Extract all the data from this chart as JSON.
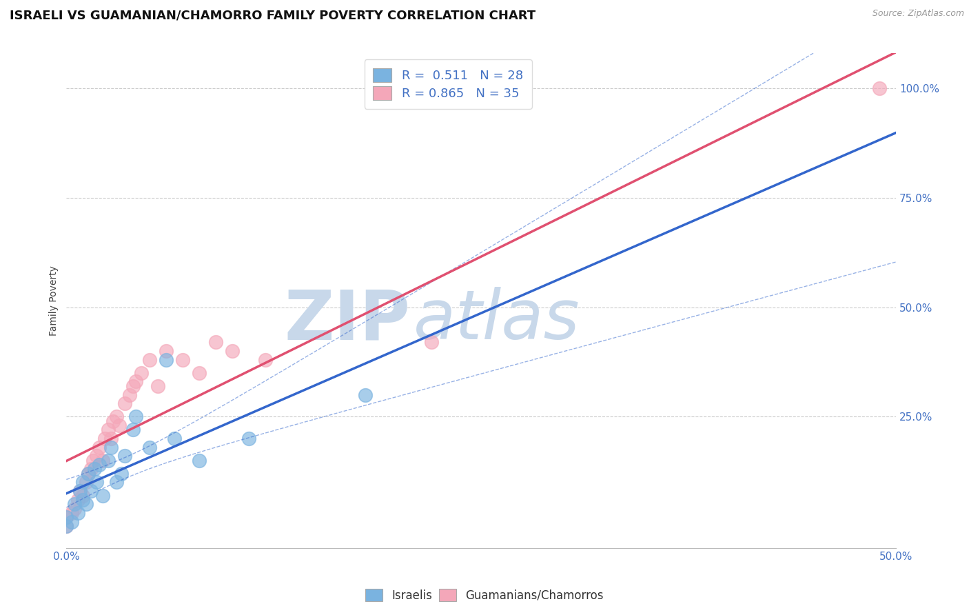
{
  "title": "ISRAELI VS GUAMANIAN/CHAMORRO FAMILY POVERTY CORRELATION CHART",
  "source": "Source: ZipAtlas.com",
  "ylabel": "Family Poverty",
  "ytick_labels": [
    "25.0%",
    "50.0%",
    "75.0%",
    "100.0%"
  ],
  "ytick_values": [
    0.25,
    0.5,
    0.75,
    1.0
  ],
  "xtick_values": [
    0.0,
    0.1,
    0.2,
    0.3,
    0.4,
    0.5
  ],
  "xmin": 0.0,
  "xmax": 0.5,
  "ymin": -0.05,
  "ymax": 1.08,
  "R_israeli": 0.511,
  "N_israeli": 28,
  "R_guamanian": 0.865,
  "N_guamanian": 35,
  "israeli_color": "#7ab3e0",
  "guamanian_color": "#f4a7b9",
  "israeli_line_color": "#3366cc",
  "guamanian_line_color": "#e05070",
  "israeli_scatter_x": [
    0.0,
    0.0,
    0.003,
    0.005,
    0.007,
    0.008,
    0.01,
    0.01,
    0.012,
    0.013,
    0.015,
    0.017,
    0.018,
    0.02,
    0.022,
    0.025,
    0.027,
    0.03,
    0.033,
    0.035,
    0.04,
    0.042,
    0.05,
    0.06,
    0.065,
    0.08,
    0.11,
    0.18
  ],
  "israeli_scatter_y": [
    0.0,
    0.02,
    0.01,
    0.05,
    0.03,
    0.08,
    0.06,
    0.1,
    0.05,
    0.12,
    0.08,
    0.13,
    0.1,
    0.14,
    0.07,
    0.15,
    0.18,
    0.1,
    0.12,
    0.16,
    0.22,
    0.25,
    0.18,
    0.38,
    0.2,
    0.15,
    0.2,
    0.3
  ],
  "guamanian_scatter_x": [
    0.0,
    0.0,
    0.003,
    0.005,
    0.007,
    0.008,
    0.01,
    0.012,
    0.013,
    0.015,
    0.016,
    0.018,
    0.02,
    0.022,
    0.023,
    0.025,
    0.027,
    0.028,
    0.03,
    0.032,
    0.035,
    0.038,
    0.04,
    0.042,
    0.045,
    0.05,
    0.055,
    0.06,
    0.07,
    0.08,
    0.09,
    0.1,
    0.12,
    0.22,
    0.49
  ],
  "guamanian_scatter_y": [
    0.0,
    0.02,
    0.03,
    0.04,
    0.06,
    0.08,
    0.07,
    0.1,
    0.12,
    0.13,
    0.15,
    0.16,
    0.18,
    0.15,
    0.2,
    0.22,
    0.2,
    0.24,
    0.25,
    0.23,
    0.28,
    0.3,
    0.32,
    0.33,
    0.35,
    0.38,
    0.32,
    0.4,
    0.38,
    0.35,
    0.42,
    0.4,
    0.38,
    0.42,
    1.0
  ],
  "watermark_zip": "ZIP",
  "watermark_atlas": "atlas",
  "watermark_color": "#c8d8ea",
  "background_color": "#ffffff",
  "grid_color": "#cccccc",
  "title_fontsize": 13,
  "axis_label_fontsize": 10,
  "tick_fontsize": 11,
  "legend_fontsize": 13
}
